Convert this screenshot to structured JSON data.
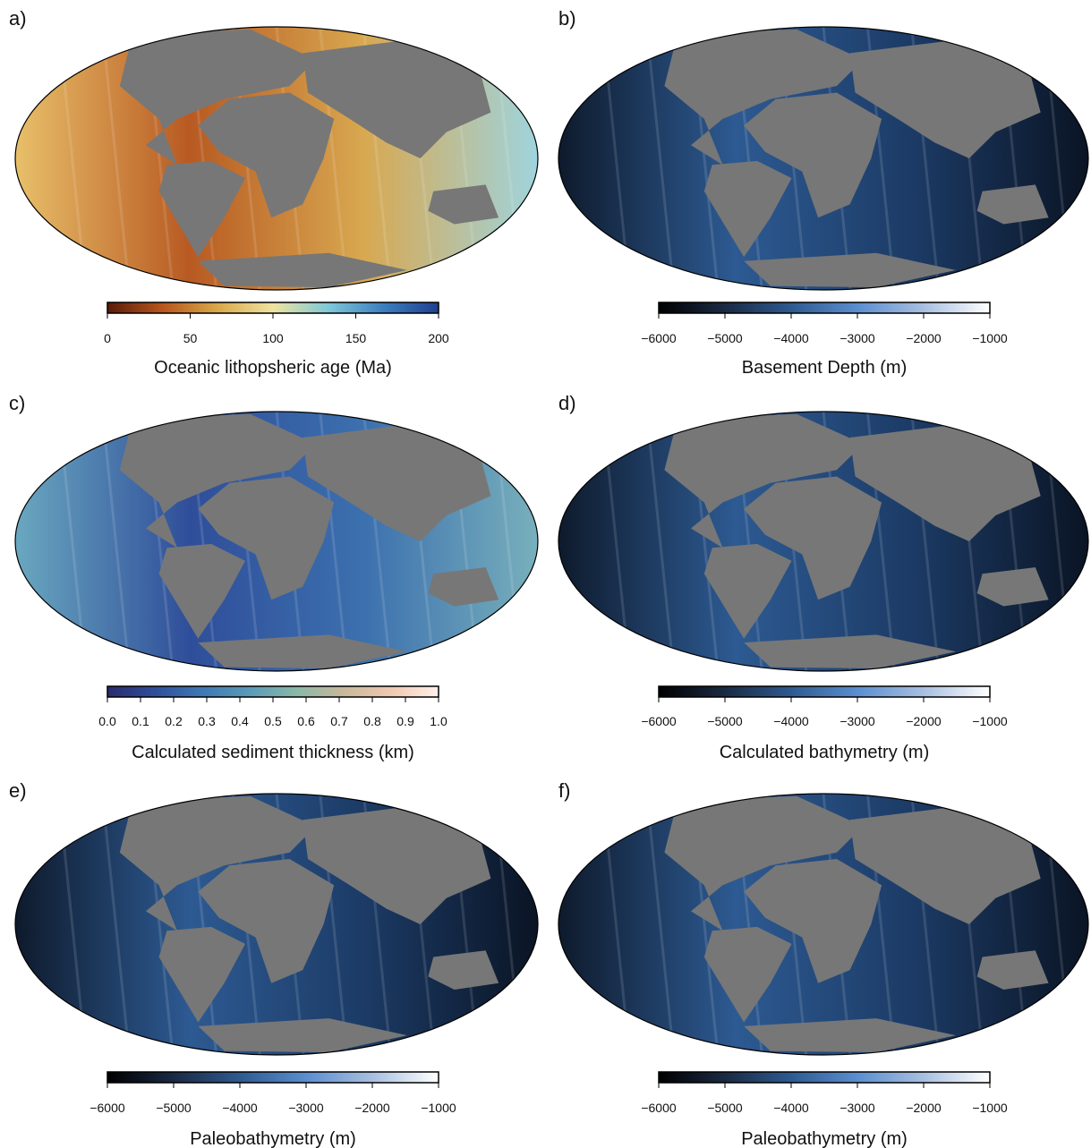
{
  "panels": [
    {
      "label": "a)",
      "colors": [
        "#5a1a08",
        "#b8561c",
        "#d9a84a",
        "#efe3a0",
        "#7fc8d8",
        "#3b7fc0",
        "#1f3f8f"
      ],
      "ocean": [
        "#e8c06a",
        "#b85a22",
        "#d8a850",
        "#9fd4de"
      ],
      "colorbar": {
        "ticks": [
          "0",
          "50",
          "100",
          "150",
          "200"
        ],
        "title": "Oceanic lithopsheric age (Ma)"
      }
    },
    {
      "label": "b)",
      "colors": [
        "#000000",
        "#1a2a44",
        "#2e5a90",
        "#5b8ed0",
        "#a8bfe0",
        "#ffffff"
      ],
      "ocean": [
        "#0e1a2c",
        "#2d5a92",
        "#1c3b66",
        "#0a1424"
      ],
      "colorbar": {
        "ticks": [
          "−6000",
          "−5000",
          "−4000",
          "−3000",
          "−2000",
          "−1000"
        ],
        "title": "Basement Depth (m)"
      }
    },
    {
      "label": "c)",
      "colors": [
        "#2a2a6e",
        "#2f4e9a",
        "#3f78b4",
        "#5a9ab8",
        "#8ab8a8",
        "#c8b89a",
        "#f0c8b0",
        "#fff0ea"
      ],
      "ocean": [
        "#6aa8c0",
        "#2f4e9a",
        "#3c70ae",
        "#78b0bc"
      ],
      "colorbar": {
        "ticks": [
          "0.0",
          "0.1",
          "0.2",
          "0.3",
          "0.4",
          "0.5",
          "0.6",
          "0.7",
          "0.8",
          "0.9",
          "1.0"
        ],
        "title": "Calculated sediment thickness (km)"
      }
    },
    {
      "label": "d)",
      "colors": [
        "#000000",
        "#1a2a44",
        "#2e5a90",
        "#5b8ed0",
        "#a8bfe0",
        "#ffffff"
      ],
      "ocean": [
        "#0e1a2c",
        "#2d5a92",
        "#1c3b66",
        "#0a1424"
      ],
      "colorbar": {
        "ticks": [
          "−6000",
          "−5000",
          "−4000",
          "−3000",
          "−2000",
          "−1000"
        ],
        "title": "Calculated bathymetry (m)"
      }
    },
    {
      "label": "e)",
      "colors": [
        "#000000",
        "#1a2a44",
        "#2e5a90",
        "#5b8ed0",
        "#a8bfe0",
        "#ffffff"
      ],
      "ocean": [
        "#0e1a2c",
        "#2d5a92",
        "#1c3b66",
        "#0a1424"
      ],
      "colorbar": {
        "ticks": [
          "−6000",
          "−5000",
          "−4000",
          "−3000",
          "−2000",
          "−1000"
        ],
        "title": "Paleobathymetry (m)"
      }
    },
    {
      "label": "f)",
      "colors": [
        "#000000",
        "#1a2a44",
        "#2e5a90",
        "#5b8ed0",
        "#a8bfe0",
        "#ffffff"
      ],
      "ocean": [
        "#0e1a2c",
        "#2d5a92",
        "#1c3b66",
        "#0a1424"
      ],
      "colorbar": {
        "ticks": [
          "−6000",
          "−5000",
          "−4000",
          "−3000",
          "−2000",
          "−1000"
        ],
        "title": "Paleobathymetry (m)"
      }
    }
  ]
}
